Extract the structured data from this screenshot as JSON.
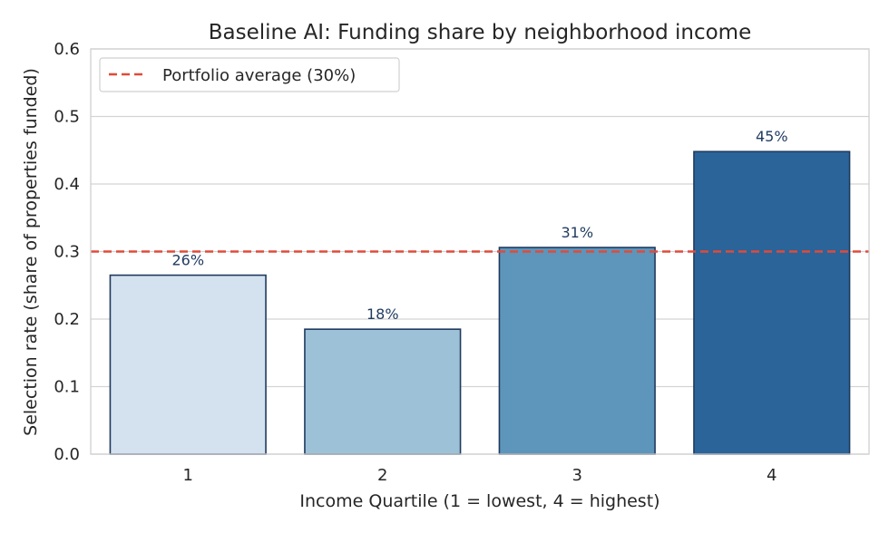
{
  "chart_data": {
    "type": "bar",
    "title": "Baseline AI: Funding share by neighborhood income",
    "xlabel": "Income Quartile (1 = lowest, 4 = highest)",
    "ylabel": "Selection rate (share of properties funded)",
    "categories": [
      "1",
      "2",
      "3",
      "4"
    ],
    "values": [
      0.265,
      0.185,
      0.306,
      0.448
    ],
    "data_labels": [
      "26%",
      "18%",
      "31%",
      "45%"
    ],
    "bar_colors": [
      "#d4e2f0",
      "#9dc2d7",
      "#5d95bb",
      "#2b6499"
    ],
    "bar_edge_color": "#1f3a5f",
    "ylim": [
      0,
      0.6
    ],
    "yticks": [
      0.0,
      0.1,
      0.2,
      0.3,
      0.4,
      0.5,
      0.6
    ],
    "ytick_labels": [
      "0.0",
      "0.1",
      "0.2",
      "0.3",
      "0.4",
      "0.5",
      "0.6"
    ],
    "grid": "horizontal",
    "reference_line": {
      "value": 0.3,
      "label": "Portfolio average (30%)",
      "color": "#e04b3a",
      "style": "dashed"
    },
    "legend": {
      "position": "top-left"
    }
  }
}
